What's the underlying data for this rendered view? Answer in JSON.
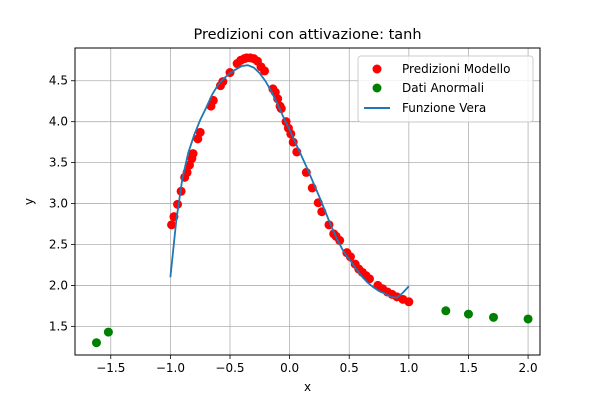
{
  "chart_data": {
    "type": "scatter",
    "title": "Predizioni con attivazione: tanh",
    "xlabel": "x",
    "ylabel": "y",
    "xlim": [
      -1.8,
      2.1
    ],
    "ylim": [
      1.15,
      4.9
    ],
    "xticks": [
      -1.5,
      -1.0,
      -0.5,
      0.0,
      0.5,
      1.0,
      1.5,
      2.0
    ],
    "xtick_labels": [
      "−1.5",
      "−1.0",
      "−0.5",
      "0.0",
      "0.5",
      "1.0",
      "1.5",
      "2.0"
    ],
    "yticks": [
      1.5,
      2.0,
      2.5,
      3.0,
      3.5,
      4.0,
      4.5
    ],
    "ytick_labels": [
      "1.5",
      "2.0",
      "2.5",
      "3.0",
      "3.5",
      "4.0",
      "4.5"
    ],
    "grid": true,
    "legend_position": "top-right",
    "series": [
      {
        "name": "Predizioni Modello",
        "kind": "scatter",
        "color": "#ff0000",
        "points": [
          [
            -0.99,
            2.74
          ],
          [
            -0.97,
            2.84
          ],
          [
            -0.94,
            2.99
          ],
          [
            -0.91,
            3.15
          ],
          [
            -0.88,
            3.32
          ],
          [
            -0.86,
            3.38
          ],
          [
            -0.84,
            3.47
          ],
          [
            -0.82,
            3.55
          ],
          [
            -0.81,
            3.61
          ],
          [
            -0.77,
            3.79
          ],
          [
            -0.75,
            3.87
          ],
          [
            -0.66,
            4.19
          ],
          [
            -0.64,
            4.26
          ],
          [
            -0.58,
            4.44
          ],
          [
            -0.56,
            4.49
          ],
          [
            -0.5,
            4.6
          ],
          [
            -0.44,
            4.71
          ],
          [
            -0.41,
            4.75
          ],
          [
            -0.38,
            4.77
          ],
          [
            -0.36,
            4.78
          ],
          [
            -0.33,
            4.78
          ],
          [
            -0.3,
            4.77
          ],
          [
            -0.27,
            4.74
          ],
          [
            -0.24,
            4.67
          ],
          [
            -0.21,
            4.62
          ],
          [
            -0.14,
            4.4
          ],
          [
            -0.12,
            4.36
          ],
          [
            -0.1,
            4.28
          ],
          [
            -0.08,
            4.19
          ],
          [
            -0.07,
            4.16
          ],
          [
            -0.03,
            4.0
          ],
          [
            -0.01,
            3.92
          ],
          [
            0.01,
            3.85
          ],
          [
            0.03,
            3.75
          ],
          [
            0.06,
            3.63
          ],
          [
            0.14,
            3.38
          ],
          [
            0.19,
            3.19
          ],
          [
            0.24,
            3.01
          ],
          [
            0.27,
            2.9
          ],
          [
            0.33,
            2.74
          ],
          [
            0.37,
            2.63
          ],
          [
            0.39,
            2.6
          ],
          [
            0.42,
            2.55
          ],
          [
            0.48,
            2.4
          ],
          [
            0.51,
            2.35
          ],
          [
            0.55,
            2.26
          ],
          [
            0.58,
            2.2
          ],
          [
            0.61,
            2.16
          ],
          [
            0.64,
            2.12
          ],
          [
            0.67,
            2.08
          ],
          [
            0.74,
            2.0
          ],
          [
            0.78,
            1.96
          ],
          [
            0.82,
            1.92
          ],
          [
            0.86,
            1.89
          ],
          [
            0.9,
            1.86
          ],
          [
            0.95,
            1.83
          ],
          [
            1.0,
            1.8
          ]
        ]
      },
      {
        "name": "Dati Anormali",
        "kind": "scatter",
        "color": "#008000",
        "points": [
          [
            -1.62,
            1.3
          ],
          [
            -1.52,
            1.43
          ],
          [
            1.31,
            1.69
          ],
          [
            1.5,
            1.65
          ],
          [
            1.71,
            1.61
          ],
          [
            2.0,
            1.59
          ]
        ]
      },
      {
        "name": "Funzione Vera",
        "kind": "line",
        "color": "#1f77b4",
        "points": [
          [
            -1.0,
            2.1
          ],
          [
            -0.95,
            2.8
          ],
          [
            -0.9,
            3.3
          ],
          [
            -0.85,
            3.62
          ],
          [
            -0.8,
            3.84
          ],
          [
            -0.75,
            4.02
          ],
          [
            -0.7,
            4.17
          ],
          [
            -0.65,
            4.33
          ],
          [
            -0.6,
            4.45
          ],
          [
            -0.55,
            4.53
          ],
          [
            -0.5,
            4.59
          ],
          [
            -0.45,
            4.64
          ],
          [
            -0.4,
            4.68
          ],
          [
            -0.35,
            4.69
          ],
          [
            -0.3,
            4.66
          ],
          [
            -0.25,
            4.59
          ],
          [
            -0.2,
            4.49
          ],
          [
            -0.15,
            4.36
          ],
          [
            -0.1,
            4.21
          ],
          [
            -0.05,
            4.05
          ],
          [
            0.0,
            3.9
          ],
          [
            0.05,
            3.74
          ],
          [
            0.1,
            3.58
          ],
          [
            0.15,
            3.42
          ],
          [
            0.2,
            3.25
          ],
          [
            0.25,
            3.08
          ],
          [
            0.3,
            2.9
          ],
          [
            0.35,
            2.72
          ],
          [
            0.4,
            2.56
          ],
          [
            0.45,
            2.42
          ],
          [
            0.5,
            2.32
          ],
          [
            0.55,
            2.22
          ],
          [
            0.6,
            2.12
          ],
          [
            0.65,
            2.04
          ],
          [
            0.7,
            1.98
          ],
          [
            0.75,
            1.93
          ],
          [
            0.8,
            1.9
          ],
          [
            0.85,
            1.86
          ],
          [
            0.9,
            1.85
          ],
          [
            0.95,
            1.91
          ],
          [
            1.0,
            1.99
          ]
        ]
      }
    ]
  }
}
